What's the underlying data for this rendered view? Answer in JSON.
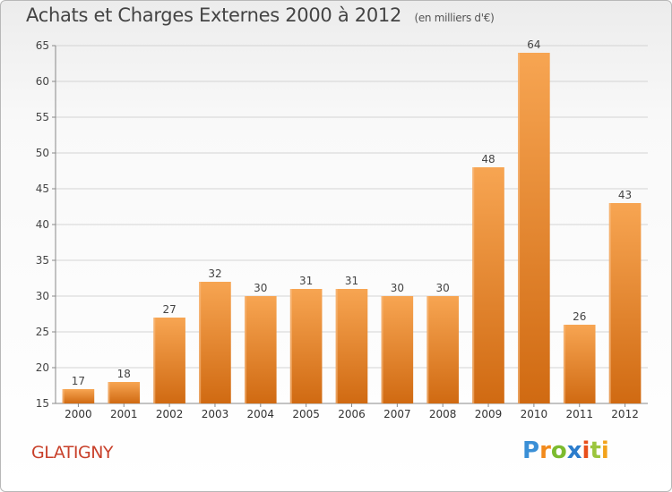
{
  "chart_data": {
    "type": "bar",
    "title": "Achats et Charges Externes 2000 à 2012",
    "subtitle": "(en milliers d'€)",
    "categories": [
      "2000",
      "2001",
      "2002",
      "2003",
      "2004",
      "2005",
      "2006",
      "2007",
      "2008",
      "2009",
      "2010",
      "2011",
      "2012"
    ],
    "values": [
      17,
      18,
      27,
      32,
      30,
      31,
      31,
      30,
      30,
      48,
      64,
      26,
      43
    ],
    "xlabel": "",
    "ylabel": "",
    "ylim": [
      15,
      65
    ],
    "yticks": [
      15,
      20,
      25,
      30,
      35,
      40,
      45,
      50,
      55,
      60,
      65
    ],
    "grid": true,
    "bar_color_top": "#f7a552",
    "bar_color_bottom": "#d06a12"
  },
  "commune": "GLATIGNY",
  "logo": {
    "letters": [
      "P",
      "r",
      "o",
      "x",
      "i",
      "t",
      "i"
    ]
  }
}
